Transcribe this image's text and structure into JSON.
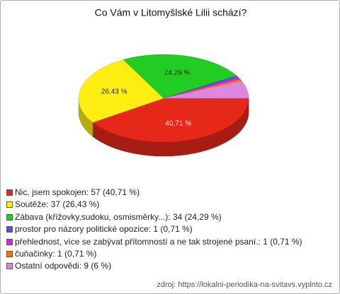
{
  "chart_data": {
    "type": "pie",
    "title": "Co Vám v Litomyšlské Lilii schází?",
    "categories": [
      "Nic, jsem spokojen",
      "Soutěže",
      "Zábava (křížovky,sudoku, osmisměrky...)",
      "prostor pro názory politické opozice",
      "přehlednost, více se zabývat přítomností a ne tak strojené psaní.",
      "čuňačinky",
      "Ostatní odpovědi"
    ],
    "values": [
      57,
      37,
      34,
      1,
      1,
      1,
      9
    ],
    "value_labels": [
      "40,71 %",
      "26,43 %",
      "24,29 %",
      null,
      null,
      null,
      null
    ],
    "legend_labels": [
      "Nic, jsem spokojen: 57 (40,71 %)",
      "Soutěže: 37 (26,43 %)",
      "Zábava (křížovky,sudoku, osmisměrky...): 34 (24,29 %)",
      "prostor pro názory politické opozice: 1 (0,71 %)",
      "přehlednost, více se zabývat přítomností a ne tak strojené psaní.: 1 (0,71 %)",
      "čuňačinky: 1 (0,71 %)",
      "Ostatní odpovědi: 9 (6 %)"
    ],
    "colors": [
      "#e5281a",
      "#ffee11",
      "#22cc22",
      "#5050ee",
      "#dd22dd",
      "#ee7711",
      "#dd88dd"
    ],
    "source": "zdroj: https://lokalni-periodika-na-svitavs.vyplnto.cz"
  }
}
